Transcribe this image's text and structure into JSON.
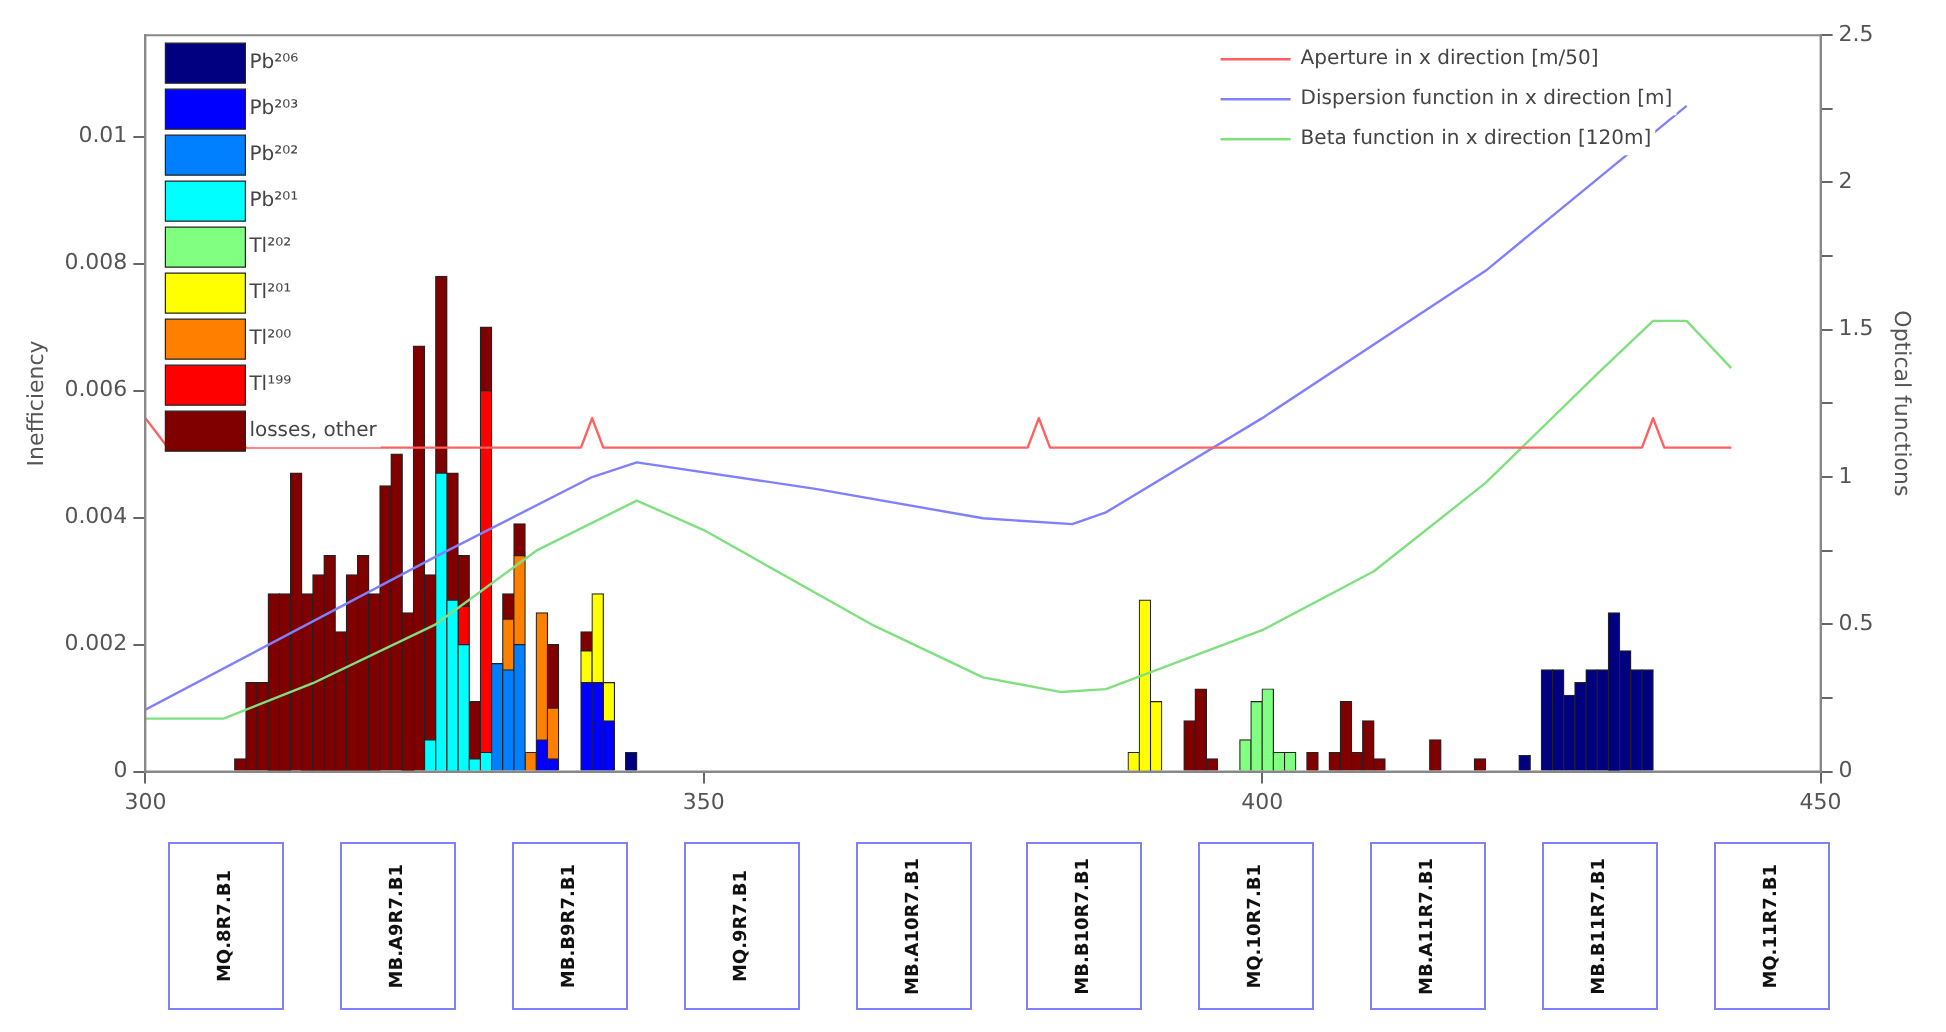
{
  "chart_data": {
    "type": "bar",
    "stacked": true,
    "ylabel": "Inefficiency",
    "y2label": "Optical functions",
    "xlim": [
      300,
      450
    ],
    "xticks": [
      300,
      350,
      400,
      450
    ],
    "ylim": [
      0,
      0.0116
    ],
    "yticks": [
      0,
      0.002,
      0.004,
      0.006,
      0.008,
      0.01
    ],
    "y2lim": [
      0,
      2.5
    ],
    "y2ticks": [
      0,
      {
        "value": 0.25,
        "label": null
      },
      0.5,
      {
        "value": 0.75,
        "label": null
      },
      1,
      {
        "value": 1.25,
        "label": null
      },
      1.5,
      {
        "value": 1.75,
        "label": null
      },
      2,
      {
        "value": 2.25,
        "label": null
      },
      2.5
    ],
    "grid": false,
    "legend": "top",
    "x": [
      308.5,
      309.5,
      310.5,
      311.5,
      312.5,
      313.5,
      314.5,
      315.5,
      316.5,
      317.5,
      318.5,
      319.5,
      320.5,
      321.5,
      322.5,
      323.5,
      324.5,
      325.5,
      326.5,
      327.5,
      328.5,
      329.5,
      330.5,
      331.5,
      332.5,
      333.5,
      334.5,
      335.5,
      336.5,
      339.5,
      340.5,
      341.5,
      343.5,
      388.5,
      389.5,
      390.5,
      393.5,
      394.5,
      395.5,
      398.5,
      399.5,
      400.5,
      401.5,
      402.5,
      404.5,
      406.5,
      407.5,
      408.5,
      409.5,
      410.5,
      415.5,
      419.5,
      423.5,
      425.5,
      426.5,
      427.5,
      428.5,
      429.5,
      430.5,
      431.5,
      432.5,
      433.5,
      434.5
    ],
    "series": [
      {
        "name": "Pb²⁰⁶",
        "color": "#000080",
        "values": [
          null,
          null,
          null,
          null,
          null,
          null,
          null,
          null,
          null,
          null,
          null,
          null,
          null,
          null,
          null,
          null,
          null,
          null,
          null,
          null,
          null,
          null,
          null,
          null,
          null,
          null,
          null,
          null,
          null,
          null,
          null,
          null,
          0.0003,
          null,
          null,
          null,
          null,
          null,
          null,
          null,
          null,
          null,
          null,
          null,
          null,
          null,
          null,
          null,
          null,
          null,
          null,
          null,
          0.00025,
          0.0016,
          0.0016,
          0.0012,
          0.0014,
          0.0016,
          0.0016,
          0.0025,
          0.0019,
          0.0016,
          0.0016
        ]
      },
      {
        "name": "Pb²⁰³",
        "color": "#0000ff",
        "values": [
          null,
          null,
          null,
          null,
          null,
          null,
          null,
          null,
          null,
          null,
          null,
          null,
          null,
          null,
          null,
          null,
          null,
          null,
          null,
          null,
          null,
          null,
          null,
          null,
          null,
          null,
          null,
          0.0005,
          0.0002,
          0.0014,
          0.0014,
          0.0008,
          null,
          null,
          null,
          null,
          null,
          null,
          null,
          null,
          null,
          null,
          null,
          null,
          null,
          null,
          null,
          null,
          null,
          null,
          null,
          null,
          null,
          null,
          null,
          null,
          null,
          null,
          null,
          null,
          null,
          null,
          null
        ]
      },
      {
        "name": "Pb²⁰²",
        "color": "#0080ff",
        "values": [
          null,
          null,
          null,
          null,
          null,
          null,
          null,
          null,
          null,
          null,
          null,
          null,
          null,
          null,
          null,
          null,
          null,
          null,
          null,
          null,
          null,
          null,
          null,
          0.0017,
          0.0016,
          0.002,
          null,
          null,
          null,
          null,
          null,
          null,
          null,
          null,
          null,
          null,
          null,
          null,
          null,
          null,
          null,
          null,
          null,
          null,
          null,
          null,
          null,
          null,
          null,
          null,
          null,
          null,
          null,
          null,
          null,
          null,
          null,
          null,
          null,
          null,
          null,
          null,
          null
        ]
      },
      {
        "name": "Pb²⁰¹",
        "color": "#00ffff",
        "values": [
          null,
          null,
          null,
          null,
          null,
          null,
          null,
          null,
          null,
          null,
          null,
          null,
          null,
          null,
          null,
          null,
          null,
          0.0005,
          0.0047,
          0.0027,
          0.002,
          0.0002,
          0.0003,
          null,
          null,
          null,
          null,
          null,
          null,
          null,
          null,
          null,
          null,
          null,
          null,
          null,
          null,
          null,
          null,
          null,
          null,
          null,
          null,
          null,
          null,
          null,
          null,
          null,
          null,
          null,
          null,
          null,
          null,
          null,
          null,
          null,
          null,
          null,
          null,
          null,
          null,
          null,
          null
        ]
      },
      {
        "name": "Tl²⁰²",
        "color": "#80ff80",
        "values": [
          null,
          null,
          null,
          null,
          null,
          null,
          null,
          null,
          null,
          null,
          null,
          null,
          null,
          null,
          null,
          null,
          null,
          null,
          null,
          null,
          null,
          null,
          null,
          null,
          null,
          null,
          null,
          null,
          null,
          null,
          null,
          null,
          null,
          null,
          null,
          null,
          null,
          null,
          null,
          0.0005,
          0.0011,
          0.0013,
          0.0003,
          0.0003,
          null,
          null,
          null,
          null,
          null,
          null,
          null,
          null,
          null,
          null,
          null,
          null,
          null,
          null,
          null,
          null,
          null,
          null,
          null
        ]
      },
      {
        "name": "Tl²⁰¹",
        "color": "#ffff00",
        "values": [
          null,
          null,
          null,
          null,
          null,
          null,
          null,
          null,
          null,
          null,
          null,
          null,
          null,
          null,
          null,
          null,
          null,
          null,
          null,
          null,
          null,
          null,
          null,
          null,
          null,
          null,
          null,
          null,
          null,
          0.0005,
          0.0014,
          0.0006,
          null,
          0.0003,
          0.0027,
          0.0011,
          null,
          null,
          null,
          null,
          null,
          null,
          null,
          null,
          null,
          null,
          null,
          null,
          null,
          null,
          null,
          null,
          null,
          null,
          null,
          null,
          null,
          null,
          null,
          null,
          null,
          null,
          null
        ]
      },
      {
        "name": "Tl²⁰⁰",
        "color": "#ff8000",
        "values": [
          null,
          null,
          null,
          null,
          null,
          null,
          null,
          null,
          null,
          null,
          null,
          null,
          null,
          null,
          null,
          null,
          null,
          null,
          null,
          null,
          null,
          null,
          null,
          null,
          0.0008,
          0.0014,
          0.0003,
          0.002,
          0.0008,
          null,
          null,
          null,
          null,
          null,
          null,
          null,
          null,
          null,
          null,
          null,
          null,
          null,
          null,
          null,
          null,
          null,
          null,
          null,
          null,
          null,
          null,
          null,
          null,
          null,
          null,
          null,
          null,
          null,
          null,
          null,
          null,
          null,
          null
        ]
      },
      {
        "name": "Tl¹⁹⁹",
        "color": "#ff0000",
        "values": [
          null,
          null,
          null,
          null,
          null,
          null,
          null,
          null,
          null,
          null,
          null,
          null,
          null,
          null,
          null,
          null,
          null,
          null,
          null,
          null,
          0.0006,
          null,
          0.0057,
          null,
          null,
          null,
          null,
          null,
          null,
          null,
          null,
          null,
          null,
          null,
          null,
          null,
          null,
          null,
          null,
          null,
          null,
          null,
          null,
          null,
          null,
          null,
          null,
          null,
          null,
          null,
          null,
          null,
          null,
          null,
          null,
          null,
          null,
          null,
          null,
          null,
          null,
          null,
          null
        ]
      },
      {
        "name": "losses, other",
        "color": "#800000",
        "values": [
          0.0002,
          0.0014,
          0.0014,
          0.0028,
          0.0028,
          0.0047,
          0.0028,
          0.0031,
          0.0034,
          0.0022,
          0.0031,
          0.0034,
          0.0028,
          0.0045,
          0.005,
          0.0025,
          0.0067,
          0.0026,
          0.0031,
          0.002,
          0.0008,
          0.0009,
          0.001,
          null,
          0.0004,
          0.0005,
          null,
          null,
          0.001,
          0.0003,
          null,
          null,
          null,
          null,
          null,
          null,
          0.0008,
          0.0013,
          0.0002,
          null,
          null,
          null,
          null,
          null,
          0.0003,
          0.0003,
          0.0011,
          0.0003,
          0.0008,
          0.0002,
          0.0005,
          0.0002,
          null,
          null,
          null,
          null,
          null,
          null,
          null,
          null,
          null,
          null,
          null
        ]
      },
      {
        "name": "Aperture in x direction [m/50]",
        "type": "line",
        "axis": "y2",
        "color": "#ff6060",
        "x": [
          300,
          302,
          339,
          340,
          341,
          379,
          380,
          381,
          434,
          435,
          436,
          442
        ],
        "values": [
          1.2,
          1.1,
          1.1,
          1.2,
          1.1,
          1.1,
          1.2,
          1.1,
          1.1,
          1.2,
          1.1,
          1.1
        ]
      },
      {
        "name": "Dispersion function in x direction [m]",
        "type": "line",
        "axis": "y2",
        "color": "#8080ff",
        "x": [
          300,
          326,
          340,
          344,
          360,
          375,
          383,
          386,
          400,
          420,
          438
        ],
        "values": [
          0.21,
          0.73,
          1.0,
          1.05,
          0.96,
          0.86,
          0.84,
          0.88,
          1.2,
          1.7,
          2.26
        ]
      },
      {
        "name": "Beta function in x direction [120m]",
        "type": "line",
        "axis": "y2",
        "color": "#80e080",
        "x": [
          300,
          307,
          315,
          326,
          335,
          344,
          350,
          365,
          375,
          382,
          386,
          400,
          410,
          420,
          430,
          435,
          438,
          442
        ],
        "values": [
          0.18,
          0.18,
          0.3,
          0.5,
          0.75,
          0.92,
          0.82,
          0.5,
          0.32,
          0.27,
          0.28,
          0.48,
          0.68,
          0.98,
          1.35,
          1.53,
          1.53,
          1.37
        ]
      }
    ],
    "annotations": [
      "MQ.8R7.B1",
      "MB.A9R7.B1",
      "MB.B9R7.B1",
      "MQ.9R7.B1",
      "MB.A10R7.B1",
      "MB.B10R7.B1",
      "MQ.10R7.B1",
      "MB.A11R7.B1",
      "MB.B11R7.B1",
      "MQ.11R7.B1"
    ]
  }
}
